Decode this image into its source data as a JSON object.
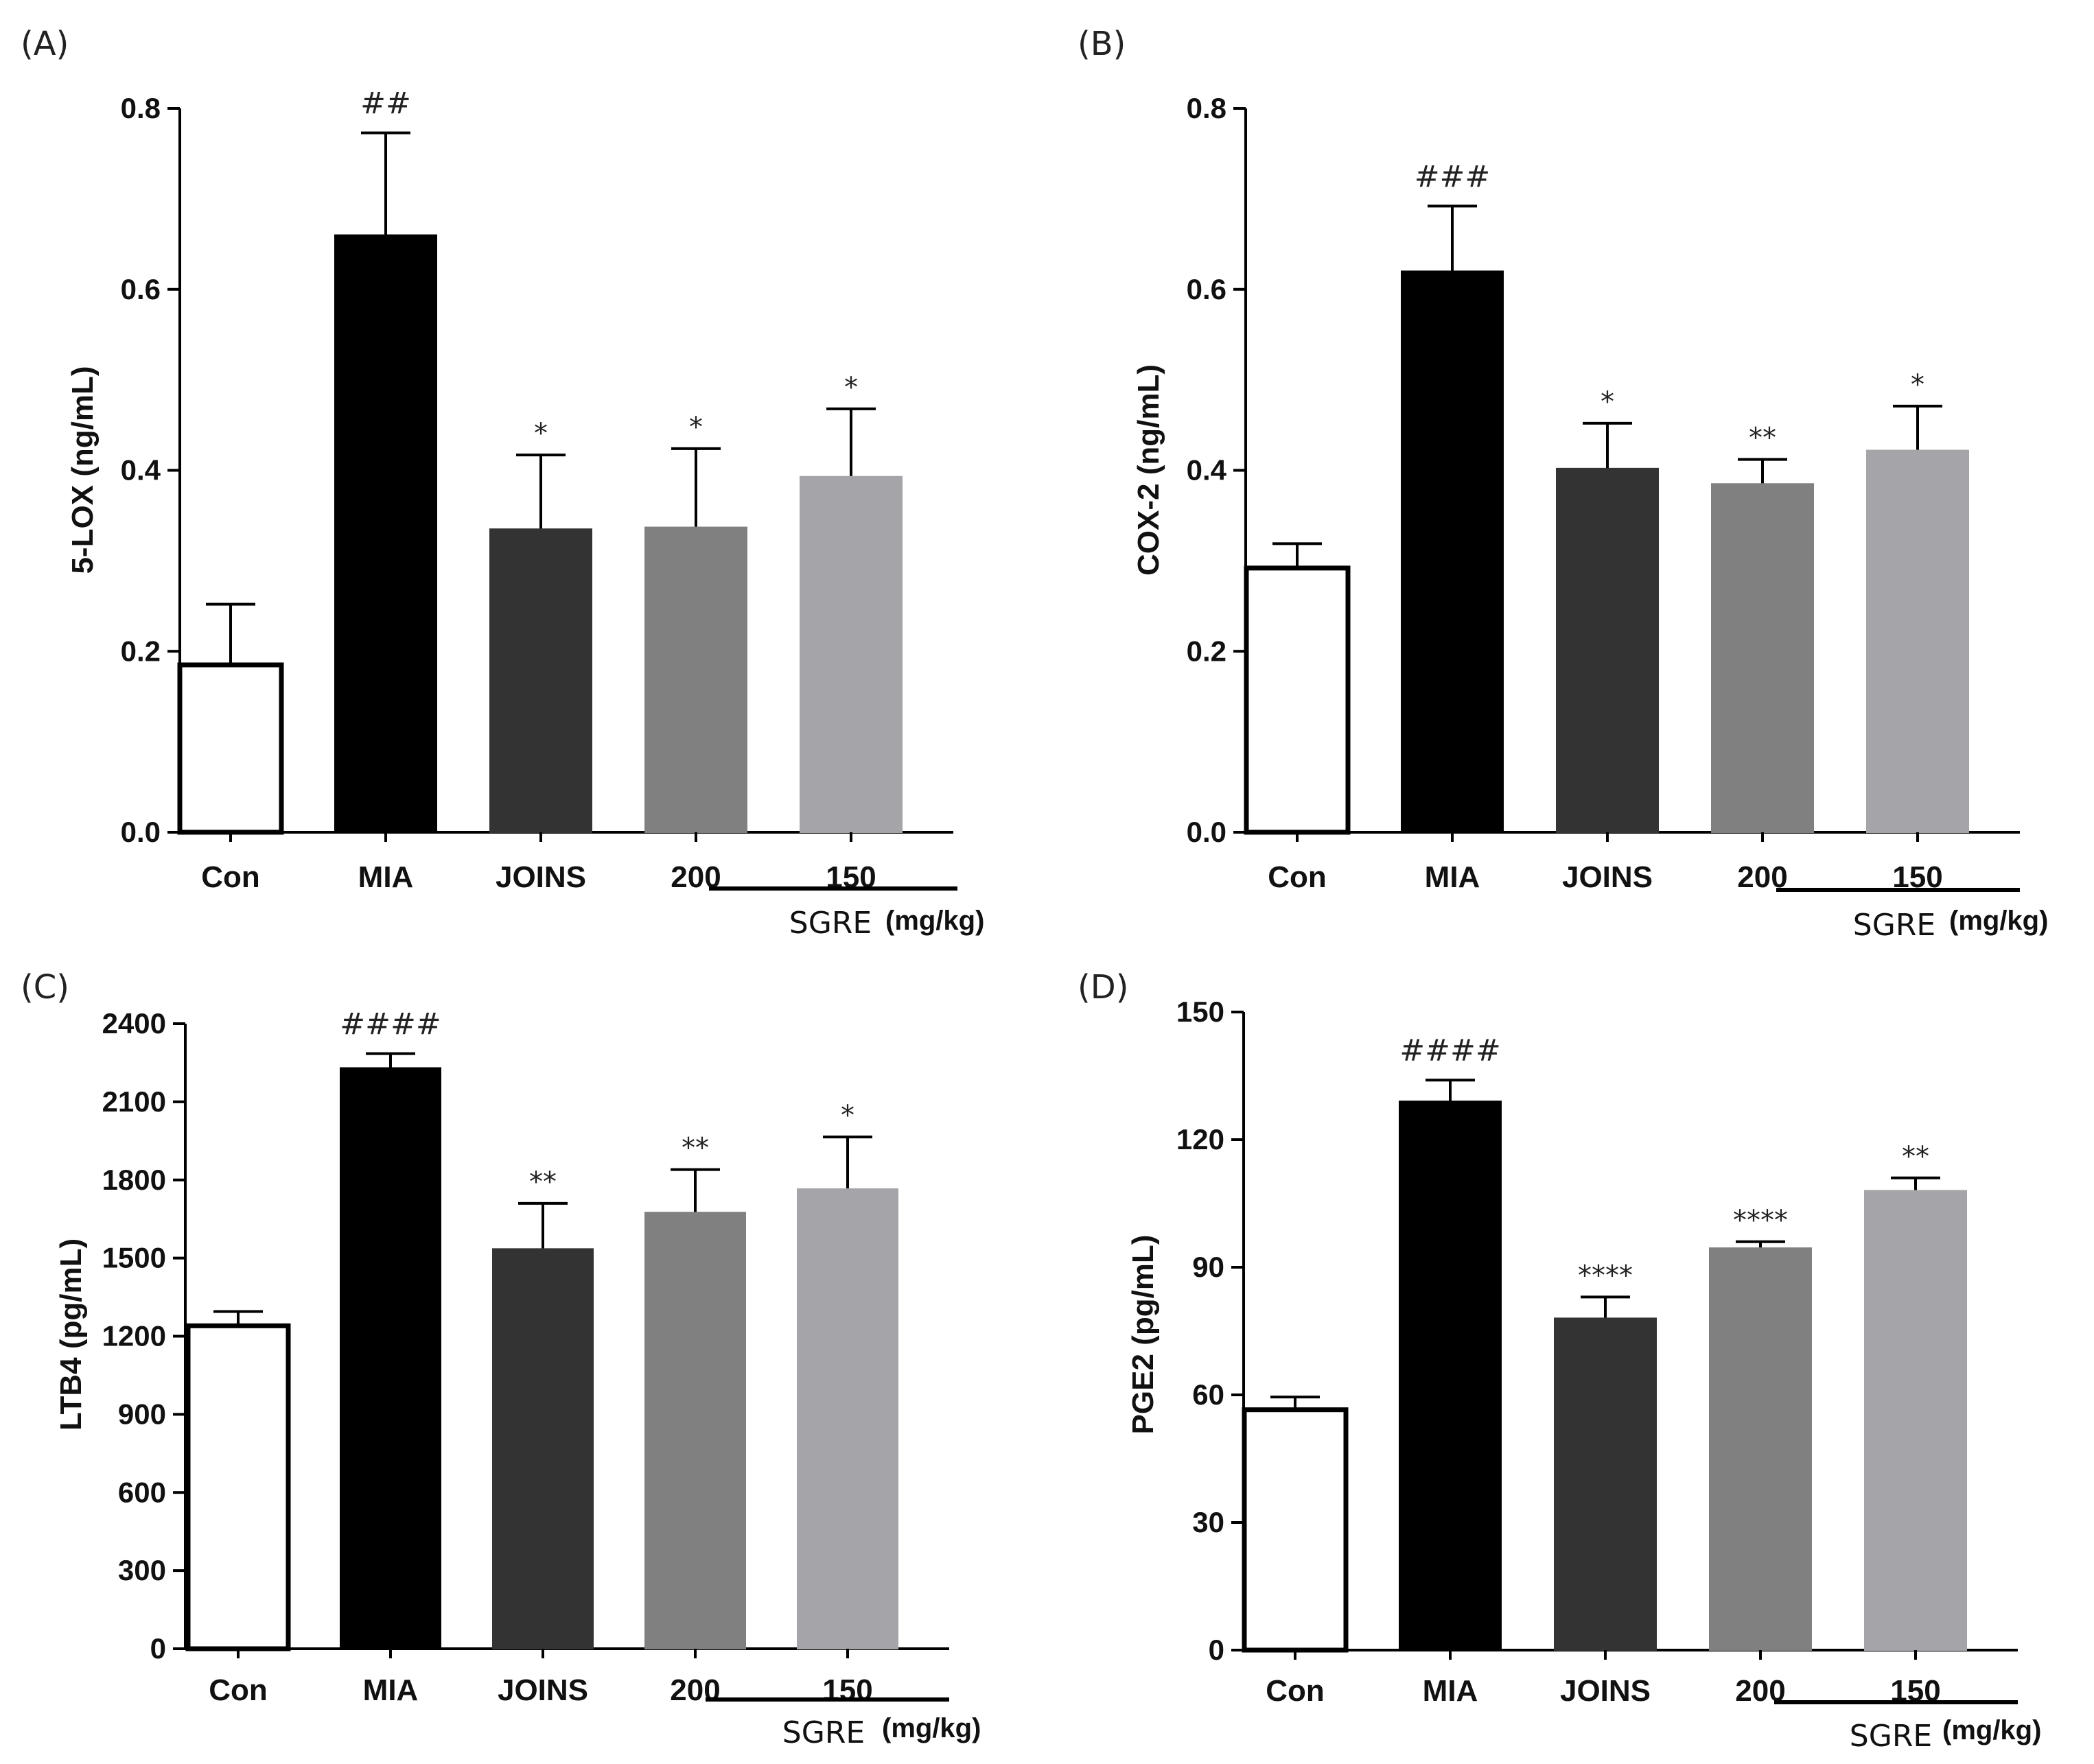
{
  "chart_data": [
    {
      "type": "bar",
      "panel": "(A)",
      "ylabel": "5-LOX (ng/mL)",
      "ylim": [
        0,
        0.8
      ],
      "yticks": [
        "0.0",
        "0.2",
        "0.4",
        "0.6",
        "0.8"
      ],
      "categories": [
        "Con",
        "MIA",
        "JOINS",
        "200",
        "150"
      ],
      "values": [
        0.185,
        0.66,
        0.335,
        0.337,
        0.393
      ],
      "errors": [
        0.067,
        0.113,
        0.082,
        0.087,
        0.075
      ],
      "annotations": [
        "",
        "##",
        "*",
        "*",
        "*"
      ],
      "group_label": "SGRE",
      "group_unit": "(mg/kg)",
      "colors": [
        "#ffffff",
        "#000000",
        "#333333",
        "#808080",
        "#a5a5a9"
      ]
    },
    {
      "type": "bar",
      "panel": "(B)",
      "ylabel": "COX-2 (ng/mL)",
      "ylim": [
        0,
        0.8
      ],
      "yticks": [
        "0.0",
        "0.2",
        "0.4",
        "0.6",
        "0.8"
      ],
      "categories": [
        "Con",
        "MIA",
        "JOINS",
        "200",
        "150"
      ],
      "values": [
        0.292,
        0.62,
        0.402,
        0.385,
        0.422
      ],
      "errors": [
        0.027,
        0.072,
        0.05,
        0.027,
        0.049
      ],
      "annotations": [
        "",
        "###",
        "*",
        "**",
        "*"
      ],
      "group_label": "SGRE",
      "group_unit": "(mg/kg)",
      "colors": [
        "#ffffff",
        "#000000",
        "#333333",
        "#808080",
        "#a5a5a9"
      ]
    },
    {
      "type": "bar",
      "panel": "(C)",
      "ylabel": "LTB4 (pg/mL)",
      "ylim": [
        0,
        2400
      ],
      "yticks": [
        "0",
        "300",
        "600",
        "900",
        "1200",
        "1500",
        "1800",
        "2100",
        "2400"
      ],
      "categories": [
        "Con",
        "MIA",
        "JOINS",
        "200",
        "150"
      ],
      "values": [
        1240,
        2230,
        1535,
        1675,
        1765
      ],
      "errors": [
        55,
        55,
        175,
        165,
        200
      ],
      "annotations": [
        "",
        "####",
        "**",
        "**",
        "*"
      ],
      "group_label": "SGRE",
      "group_unit": "(mg/kg)",
      "colors": [
        "#ffffff",
        "#000000",
        "#333333",
        "#808080",
        "#a5a5a9"
      ]
    },
    {
      "type": "bar",
      "panel": "(D)",
      "ylabel": "PGE2 (pg/mL)",
      "ylim": [
        0,
        150
      ],
      "yticks": [
        "0",
        "30",
        "60",
        "90",
        "120",
        "150"
      ],
      "categories": [
        "Con",
        "MIA",
        "JOINS",
        "200",
        "150"
      ],
      "values": [
        56.5,
        129,
        78,
        94.5,
        108
      ],
      "errors": [
        3,
        5,
        5,
        1.5,
        3
      ],
      "annotations": [
        "",
        "####",
        "****",
        "****",
        "**"
      ],
      "group_label": "SGRE",
      "group_unit": "(mg/kg)",
      "colors": [
        "#ffffff",
        "#000000",
        "#333333",
        "#808080",
        "#a5a5a9"
      ]
    }
  ]
}
